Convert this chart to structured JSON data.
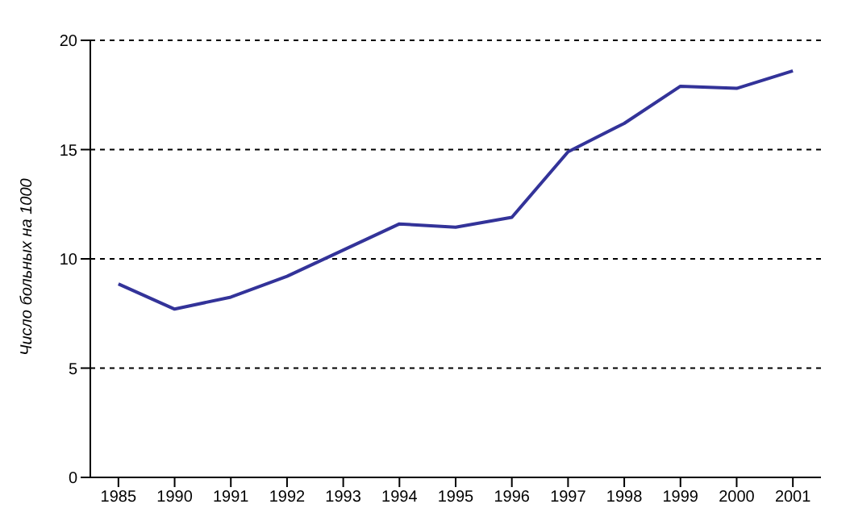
{
  "chart_data": {
    "type": "line",
    "ylabel": "Число больных на 1000",
    "categories": [
      "1985",
      "1990",
      "1991",
      "1992",
      "1993",
      "1994",
      "1995",
      "1996",
      "1997",
      "1998",
      "1999",
      "2000",
      "2001"
    ],
    "series": [
      {
        "color": "#333399",
        "values": [
          8.85,
          7.7,
          8.25,
          9.2,
          10.4,
          11.6,
          11.45,
          11.9,
          14.9,
          16.2,
          17.9,
          17.8,
          18.6
        ]
      }
    ],
    "ylim": [
      0,
      20
    ],
    "yticks": [
      0,
      5,
      10,
      15,
      20
    ],
    "grid": "y",
    "legend": false,
    "marker": "none",
    "line_style": "solid"
  }
}
